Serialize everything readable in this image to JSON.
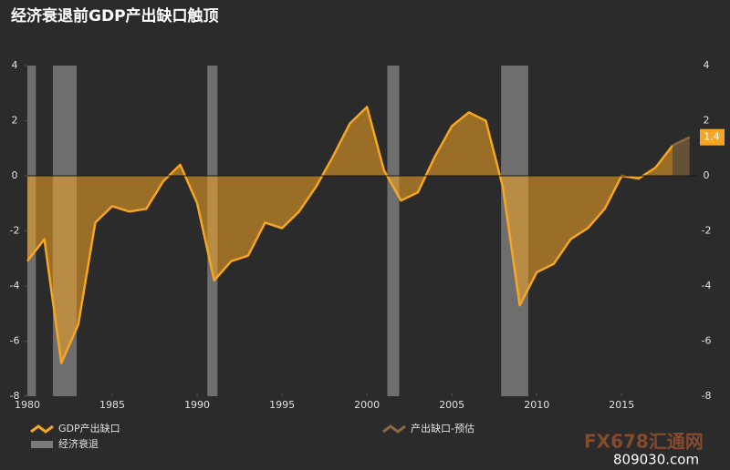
{
  "chart_data": {
    "type": "area",
    "title": "经济衰退前GDP产出缺口触顶",
    "x": [
      1980,
      1981,
      1982,
      1983,
      1984,
      1985,
      1986,
      1987,
      1988,
      1989,
      1990,
      1991,
      1992,
      1993,
      1994,
      1995,
      1996,
      1997,
      1998,
      1999,
      2000,
      2001,
      2002,
      2003,
      2004,
      2005,
      2006,
      2007,
      2008,
      2009,
      2010,
      2011,
      2012,
      2013,
      2014,
      2015,
      2016,
      2017,
      2018
    ],
    "series": [
      {
        "name": "GDP产出缺口",
        "color": "#f5a623",
        "values": [
          -3.1,
          -2.3,
          -6.8,
          -5.4,
          -1.7,
          -1.1,
          -1.3,
          -1.2,
          -0.2,
          0.4,
          -1.0,
          -3.8,
          -3.1,
          -2.9,
          -1.7,
          -1.9,
          -1.3,
          -0.4,
          0.7,
          1.9,
          2.5,
          0.2,
          -0.9,
          -0.6,
          0.7,
          1.8,
          2.3,
          2.0,
          -0.4,
          -4.7,
          -3.5,
          -3.2,
          -2.3,
          -1.9,
          -1.2,
          0.0,
          -0.1,
          0.3,
          1.1
        ]
      },
      {
        "name": "产出缺口-预估",
        "color": "#8a6a40",
        "x": [
          2018,
          2019
        ],
        "values": [
          1.1,
          1.4
        ]
      }
    ],
    "recession_label": "经济衰退",
    "recession_color": "#7a7a7a",
    "recessions": [
      [
        1980,
        1980.5
      ],
      [
        1981.5,
        1982.9
      ],
      [
        1990.6,
        1991.2
      ],
      [
        2001.2,
        2001.9
      ],
      [
        2007.9,
        2009.5
      ]
    ],
    "xlim": [
      1980,
      2019.5
    ],
    "xticks": [
      1980,
      1985,
      1990,
      1995,
      2000,
      2005,
      2010,
      2015
    ],
    "ylim": [
      -8,
      4
    ],
    "yticks": [
      -8,
      -6,
      -4,
      -2,
      0,
      2,
      4
    ],
    "watermark": [
      "FX678汇通网",
      "809030.com"
    ]
  }
}
